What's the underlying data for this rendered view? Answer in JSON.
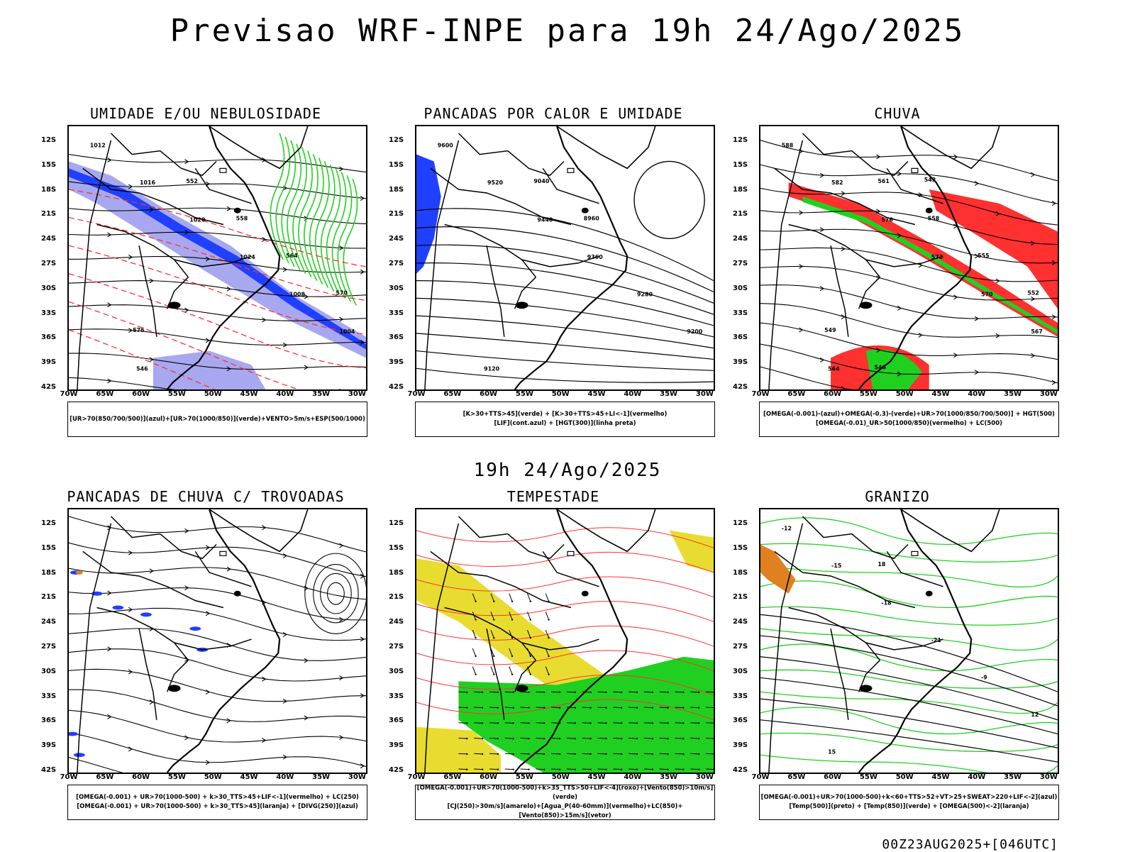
{
  "header": {
    "title": "Previsao WRF-INPE  para 19h 24/Ago/2025",
    "mid_title": "19h 24/Ago/2025",
    "footer": "00Z23AUG2025+[046UTC]"
  },
  "axes": {
    "lat_ticks": [
      "12S",
      "15S",
      "18S",
      "21S",
      "24S",
      "27S",
      "30S",
      "33S",
      "36S",
      "39S",
      "42S"
    ],
    "lon_ticks": [
      "70W",
      "65W",
      "60W",
      "55W",
      "50W",
      "45W",
      "40W",
      "35W",
      "30W"
    ]
  },
  "panels": [
    {
      "id": "umidade",
      "title": "UMIDADE E/OU NEBULOSIDADE",
      "legend": [
        "[UR>70(850/700/500)](azul)+[UR>70(1000/850)](verde)+VENTO>5m/s+ESP(500/1000)"
      ],
      "contour_labels": [
        "1012",
        "1016",
        "1020",
        "1024",
        "1008",
        "1004",
        "546",
        "552",
        "558",
        "564",
        "570",
        "576"
      ]
    },
    {
      "id": "pancadas-calor",
      "title": "PANCADAS POR CALOR E UMIDADE",
      "legend": [
        "[K>30+TTS>45](verde) + [K>30+TTS>45+LI<-1](vermelho)",
        "[LIF](cont.azul) + [HGT(300)](linha preta)"
      ],
      "contour_labels": [
        "9600",
        "9520",
        "9440",
        "9360",
        "9280",
        "9200",
        "9120",
        "9040",
        "8960"
      ]
    },
    {
      "id": "chuva",
      "title": "CHUVA",
      "legend": [
        "[OMEGA(-0.001)-(azul)+OMEGA(-0.3)-(verde)+UR>70(1000/850/700/500)] + HGT(500)",
        "[OMEGA(-0.01)_UR>50(1000/850)(vermelho) + LC(500)"
      ],
      "contour_labels": [
        "588",
        "582",
        "576",
        "573",
        "570",
        "567",
        "564",
        "561",
        "558",
        "555",
        "552",
        "549",
        "546",
        "543"
      ]
    },
    {
      "id": "pancadas-trovoadas",
      "title": "PANCADAS DE CHUVA C/ TROVOADAS",
      "legend": [
        "[OMEGA(-0.001) + UR>70(1000-500) + k>30_TTS>45+LIF<-1](vermelho) + LC(250)",
        "[OMEGA(-0.001) + UR>70(1000-500) + k>30_TTS>45](laranja) + [DIVG(250)](azul)"
      ],
      "contour_labels": []
    },
    {
      "id": "tempestade",
      "title": "TEMPESTADE",
      "legend": [
        "[OMEGA(-0.001)+UR>70(1000-500)+k>35_TTS>50+LIF<-4](roxo)+[Vento(850)>10m/s](verde)",
        "[CJ(250)>30m/s](amarelo)+[Agua_P(40-60mm)](vermelho)+LC(850)+[Vento(850)>15m/s](vetor)"
      ],
      "contour_labels": []
    },
    {
      "id": "granizo",
      "title": "GRANIZO",
      "legend": [
        "[OMEGA(-0.001)+UR>70(1000-500)+k<60+TTS>52+VT>25+SWEAT>220+LIF<-2](azul)",
        "[Temp(500)](preto) + [Temp(850)](verde) + [OMEGA(500)<-2](laranja)"
      ],
      "contour_labels": [
        "-12",
        "-15",
        "-18",
        "-21",
        "-9",
        "12",
        "15",
        "18"
      ]
    }
  ],
  "colors": {
    "black": "#000000",
    "red": "#ff3030",
    "green": "#20d020",
    "blue": "#2040ff",
    "light_blue": "#a8a8f0",
    "yellow": "#e8dc30",
    "orange": "#e08020",
    "dark_teal": "#204848"
  }
}
